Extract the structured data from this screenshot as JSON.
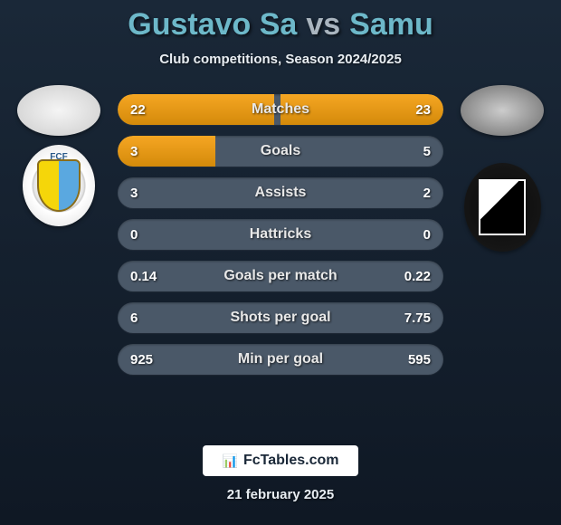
{
  "header": {
    "player1": "Gustavo Sa",
    "vs": "vs",
    "player2": "Samu",
    "subtitle": "Club competitions, Season 2024/2025"
  },
  "colors": {
    "player_title": "#6db8c9",
    "vs_color": "#aab5bf",
    "bar_bg": "#4a5868",
    "bar_fill_top": "#f5a623",
    "bar_fill_bottom": "#d48a0a",
    "bg_top": "#1a2838",
    "bg_bottom": "#0f1824",
    "text": "#ffffff"
  },
  "left_club": {
    "text": "FCF"
  },
  "stats": [
    {
      "label": "Matches",
      "left_val": "22",
      "right_val": "23",
      "left_pct": 48,
      "right_pct": 50
    },
    {
      "label": "Goals",
      "left_val": "3",
      "right_val": "5",
      "left_pct": 30,
      "right_pct": 0
    },
    {
      "label": "Assists",
      "left_val": "3",
      "right_val": "2",
      "left_pct": 0,
      "right_pct": 0
    },
    {
      "label": "Hattricks",
      "left_val": "0",
      "right_val": "0",
      "left_pct": 0,
      "right_pct": 0
    },
    {
      "label": "Goals per match",
      "left_val": "0.14",
      "right_val": "0.22",
      "left_pct": 0,
      "right_pct": 0
    },
    {
      "label": "Shots per goal",
      "left_val": "6",
      "right_val": "7.75",
      "left_pct": 0,
      "right_pct": 0
    },
    {
      "label": "Min per goal",
      "left_val": "925",
      "right_val": "595",
      "left_pct": 0,
      "right_pct": 0
    }
  ],
  "footer": {
    "brand_icon": "📊",
    "brand": "FcTables.com",
    "date": "21 february 2025"
  }
}
